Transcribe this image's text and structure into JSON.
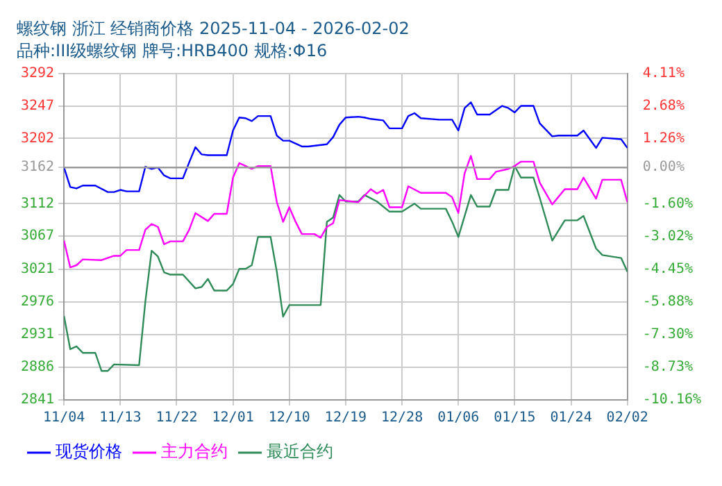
{
  "chart_data": {
    "type": "line",
    "title": "螺纹钢 浙江 经销商价格 2025-11-04 - 2026-02-02",
    "subtitle": "品种:III级螺纹钢 牌号:HRB400 规格:Φ16",
    "xlim": [
      "2025-11-04",
      "2026-02-02"
    ],
    "xticks": [
      {
        "value": "2025-11-04",
        "label": "11/04"
      },
      {
        "value": "2025-11-13",
        "label": "11/13"
      },
      {
        "value": "2025-11-22",
        "label": "11/22"
      },
      {
        "value": "2025-12-01",
        "label": "12/01"
      },
      {
        "value": "2025-12-10",
        "label": "12/10"
      },
      {
        "value": "2025-12-19",
        "label": "12/19"
      },
      {
        "value": "2025-12-28",
        "label": "12/28"
      },
      {
        "value": "2026-01-06",
        "label": "01/06"
      },
      {
        "value": "2026-01-15",
        "label": "01/15"
      },
      {
        "value": "2026-01-24",
        "label": "01/24"
      },
      {
        "value": "2026-02-02",
        "label": "02/02"
      }
    ],
    "ylim": [
      2841,
      3292
    ],
    "yticks": [
      2841,
      2886,
      2931,
      2976,
      3021,
      3067,
      3112,
      3162,
      3202,
      3247,
      3292
    ],
    "y2lim": [
      -10.16,
      4.11
    ],
    "y2ticks": [
      {
        "value": -10.16,
        "label": "-10.16%"
      },
      {
        "value": -8.73,
        "label": "-8.73%"
      },
      {
        "value": -7.3,
        "label": "-7.30%"
      },
      {
        "value": -5.88,
        "label": "-5.88%"
      },
      {
        "value": -4.45,
        "label": "-4.45%"
      },
      {
        "value": -3.02,
        "label": "-3.02%"
      },
      {
        "value": -1.6,
        "label": "-1.60%"
      },
      {
        "value": 0,
        "label": "0.00%"
      },
      {
        "value": 1.26,
        "label": "1.26%"
      },
      {
        "value": 2.68,
        "label": "2.68%"
      },
      {
        "value": 4.11,
        "label": "4.11%"
      }
    ],
    "ref_lines": [
      {
        "axis": "y",
        "value": 3162,
        "color": "#999999"
      }
    ],
    "grid": true,
    "legend": "bottom",
    "marker": "none",
    "line_style": "solid",
    "series": [
      {
        "name": "现货价格",
        "color": "#0000ff",
        "x": [
          "2025-11-04",
          "2025-11-05",
          "2025-11-06",
          "2025-11-07",
          "2025-11-09",
          "2025-11-11",
          "2025-11-12",
          "2025-11-13",
          "2025-11-14",
          "2025-11-16",
          "2025-11-17",
          "2025-11-18",
          "2025-11-19",
          "2025-11-20",
          "2025-11-21",
          "2025-11-23",
          "2025-11-24",
          "2025-11-25",
          "2025-11-26",
          "2025-11-27",
          "2025-11-30",
          "2025-12-01",
          "2025-12-02",
          "2025-12-03",
          "2025-12-04",
          "2025-12-05",
          "2025-12-07",
          "2025-12-08",
          "2025-12-09",
          "2025-12-10",
          "2025-12-12",
          "2025-12-13",
          "2025-12-16",
          "2025-12-17",
          "2025-12-18",
          "2025-12-19",
          "2025-12-21",
          "2025-12-22",
          "2025-12-23",
          "2025-12-25",
          "2025-12-26",
          "2025-12-28",
          "2025-12-29",
          "2025-12-30",
          "2025-12-31",
          "2026-01-03",
          "2026-01-05",
          "2026-01-06",
          "2026-01-07",
          "2026-01-08",
          "2026-01-09",
          "2026-01-11",
          "2026-01-13",
          "2026-01-14",
          "2026-01-15",
          "2026-01-16",
          "2026-01-18",
          "2026-01-19",
          "2026-01-21",
          "2026-01-22",
          "2026-01-25",
          "2026-01-26",
          "2026-01-28",
          "2026-01-29",
          "2026-02-01",
          "2026-02-02"
        ],
        "values": [
          3162,
          3135,
          3133,
          3137,
          3137,
          3128,
          3128,
          3131,
          3129,
          3129,
          3163,
          3160,
          3162,
          3151,
          3147,
          3147,
          3169,
          3190,
          3180,
          3179,
          3179,
          3213,
          3231,
          3230,
          3226,
          3233,
          3233,
          3206,
          3199,
          3199,
          3191,
          3191,
          3194,
          3204,
          3221,
          3231,
          3232,
          3231,
          3229,
          3227,
          3216,
          3216,
          3233,
          3237,
          3230,
          3228,
          3228,
          3213,
          3244,
          3252,
          3235,
          3235,
          3247,
          3244,
          3238,
          3247,
          3247,
          3223,
          3205,
          3206,
          3206,
          3213,
          3189,
          3203,
          3201,
          3189
        ]
      },
      {
        "name": "主力合约",
        "color": "#ff00ff",
        "x": [
          "2025-11-04",
          "2025-11-05",
          "2025-11-06",
          "2025-11-07",
          "2025-11-10",
          "2025-11-12",
          "2025-11-13",
          "2025-11-14",
          "2025-11-16",
          "2025-11-17",
          "2025-11-18",
          "2025-11-19",
          "2025-11-20",
          "2025-11-21",
          "2025-11-23",
          "2025-11-24",
          "2025-11-25",
          "2025-11-27",
          "2025-11-28",
          "2025-11-30",
          "2025-12-01",
          "2025-12-02",
          "2025-12-04",
          "2025-12-05",
          "2025-12-07",
          "2025-12-08",
          "2025-12-09",
          "2025-12-10",
          "2025-12-11",
          "2025-12-12",
          "2025-12-14",
          "2025-12-15",
          "2025-12-16",
          "2025-12-17",
          "2025-12-18",
          "2025-12-21",
          "2025-12-23",
          "2025-12-24",
          "2025-12-25",
          "2025-12-26",
          "2025-12-28",
          "2025-12-29",
          "2025-12-31",
          "2026-01-04",
          "2026-01-05",
          "2026-01-06",
          "2026-01-07",
          "2026-01-08",
          "2026-01-09",
          "2026-01-11",
          "2026-01-12",
          "2026-01-14",
          "2026-01-15",
          "2026-01-16",
          "2026-01-18",
          "2026-01-19",
          "2026-01-21",
          "2026-01-23",
          "2026-01-25",
          "2026-01-26",
          "2026-01-28",
          "2026-01-29",
          "2026-02-01",
          "2026-02-02"
        ],
        "values": [
          3061,
          3024,
          3027,
          3035,
          3034,
          3040,
          3040,
          3048,
          3048,
          3076,
          3084,
          3080,
          3056,
          3060,
          3060,
          3076,
          3099,
          3088,
          3098,
          3098,
          3148,
          3168,
          3160,
          3164,
          3164,
          3114,
          3087,
          3107,
          3087,
          3070,
          3070,
          3065,
          3080,
          3085,
          3117,
          3114,
          3132,
          3126,
          3131,
          3107,
          3107,
          3136,
          3127,
          3127,
          3121,
          3099,
          3154,
          3178,
          3146,
          3146,
          3156,
          3160,
          3164,
          3170,
          3170,
          3141,
          3111,
          3132,
          3132,
          3148,
          3119,
          3145,
          3145,
          3114
        ]
      },
      {
        "name": "最近合约",
        "color": "#2e8b57",
        "x": [
          "2025-11-04",
          "2025-11-05",
          "2025-11-06",
          "2025-11-07",
          "2025-11-09",
          "2025-11-10",
          "2025-11-11",
          "2025-11-12",
          "2025-11-16",
          "2025-11-17",
          "2025-11-18",
          "2025-11-19",
          "2025-11-20",
          "2025-11-21",
          "2025-11-23",
          "2025-11-25",
          "2025-11-26",
          "2025-11-27",
          "2025-11-28",
          "2025-11-30",
          "2025-12-01",
          "2025-12-02",
          "2025-12-03",
          "2025-12-04",
          "2025-12-05",
          "2025-12-07",
          "2025-12-08",
          "2025-12-09",
          "2025-12-10",
          "2025-12-15",
          "2025-12-16",
          "2025-12-17",
          "2025-12-18",
          "2025-12-19",
          "2025-12-21",
          "2025-12-22",
          "2025-12-24",
          "2025-12-26",
          "2025-12-28",
          "2025-12-30",
          "2025-12-31",
          "2026-01-04",
          "2026-01-05",
          "2026-01-06",
          "2026-01-08",
          "2026-01-09",
          "2026-01-11",
          "2026-01-12",
          "2026-01-14",
          "2026-01-15",
          "2026-01-16",
          "2026-01-18",
          "2026-01-19",
          "2026-01-21",
          "2026-01-23",
          "2026-01-25",
          "2026-01-26",
          "2026-01-28",
          "2026-01-29",
          "2026-02-01",
          "2026-02-02"
        ],
        "values": [
          2957,
          2911,
          2915,
          2906,
          2906,
          2881,
          2881,
          2890,
          2889,
          2977,
          3047,
          3039,
          3017,
          3014,
          3014,
          2995,
          2997,
          3008,
          2992,
          2992,
          3001,
          3022,
          3022,
          3027,
          3066,
          3066,
          3018,
          2956,
          2972,
          2972,
          3087,
          3093,
          3124,
          3115,
          3115,
          3124,
          3115,
          3101,
          3101,
          3112,
          3105,
          3105,
          3087,
          3066,
          3124,
          3108,
          3108,
          3131,
          3131,
          3164,
          3148,
          3148,
          3120,
          3061,
          3089,
          3089,
          3095,
          3050,
          3041,
          3037,
          3018
        ]
      }
    ]
  }
}
